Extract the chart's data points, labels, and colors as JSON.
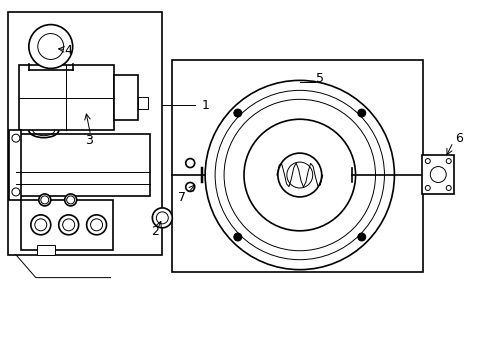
{
  "bg_color": "#ffffff",
  "line_color": "#000000",
  "lw": 1.2,
  "tlw": 0.7,
  "fig_width": 4.89,
  "fig_height": 3.6,
  "dpi": 100,
  "font_size": 9
}
